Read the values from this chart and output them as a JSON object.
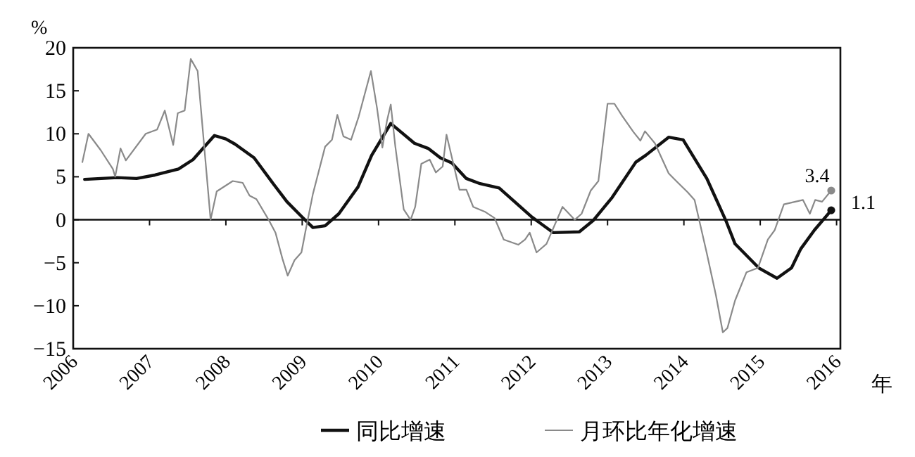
{
  "chart_data": {
    "type": "line",
    "xlabel": "年",
    "ylabel": "%",
    "xlim": [
      2006,
      2016.05
    ],
    "ylim": [
      -15,
      20
    ],
    "xticks": [
      2006,
      2007,
      2008,
      2009,
      2010,
      2011,
      2012,
      2013,
      2014,
      2015,
      2016
    ],
    "yticks": [
      -15,
      -10,
      -5,
      0,
      5,
      10,
      15,
      20
    ],
    "grid": false,
    "legend": "bottom",
    "ref_lines": [
      {
        "axis": "y",
        "value": 0,
        "color": "#111111"
      }
    ],
    "annotations": [
      {
        "text": "3.4",
        "x": 2015.93,
        "y": 3.4
      },
      {
        "text": "1.1",
        "x": 2015.93,
        "y": 1.1
      }
    ],
    "series": [
      {
        "name": "同比增速",
        "color": "#111111",
        "line_style": "solid",
        "x": [
          2006.15,
          2006.58,
          2006.83,
          2007.07,
          2007.38,
          2007.57,
          2007.69,
          2007.85,
          2008.0,
          2008.12,
          2008.37,
          2008.62,
          2008.8,
          2008.99,
          2009.14,
          2009.3,
          2009.48,
          2009.73,
          2009.91,
          2010.16,
          2010.47,
          2010.65,
          2010.81,
          2010.96,
          2011.15,
          2011.33,
          2011.58,
          2012.01,
          2012.29,
          2012.63,
          2012.81,
          2013.06,
          2013.37,
          2013.5,
          2013.8,
          2013.99,
          2014.3,
          2014.55,
          2014.67,
          2014.98,
          2015.22,
          2015.41,
          2015.53,
          2015.71,
          2015.93
        ],
        "values": [
          4.7,
          4.9,
          4.8,
          5.2,
          5.9,
          7.0,
          8.2,
          9.8,
          9.4,
          8.8,
          7.2,
          4.2,
          2.1,
          0.4,
          -0.9,
          -0.7,
          0.7,
          3.8,
          7.5,
          11.2,
          8.9,
          8.3,
          7.2,
          6.6,
          4.8,
          4.2,
          3.7,
          0.3,
          -1.5,
          -1.4,
          -0.1,
          2.6,
          6.7,
          7.5,
          9.6,
          9.3,
          4.8,
          -0.1,
          -2.8,
          -5.6,
          -6.8,
          -5.6,
          -3.4,
          -1.2,
          1.1
        ]
      },
      {
        "name": "月环比年化增速",
        "color": "#8a8a8a",
        "line_style": "solid",
        "x": [
          2006.12,
          2006.2,
          2006.36,
          2006.52,
          2006.55,
          2006.62,
          2006.69,
          2006.95,
          2007.1,
          2007.2,
          2007.31,
          2007.37,
          2007.46,
          2007.54,
          2007.63,
          2007.8,
          2007.88,
          2008.09,
          2008.22,
          2008.31,
          2008.4,
          2008.56,
          2008.65,
          2008.74,
          2008.81,
          2008.9,
          2008.99,
          2009.05,
          2009.14,
          2009.3,
          2009.39,
          2009.46,
          2009.54,
          2009.64,
          2009.74,
          2009.9,
          2009.98,
          2010.05,
          2010.11,
          2010.16,
          2010.22,
          2010.33,
          2010.42,
          2010.48,
          2010.56,
          2010.67,
          2010.75,
          2010.84,
          2010.89,
          2011.06,
          2011.15,
          2011.24,
          2011.4,
          2011.52,
          2011.64,
          2011.83,
          2011.92,
          2011.98,
          2012.07,
          2012.2,
          2012.41,
          2012.57,
          2012.66,
          2012.78,
          2012.88,
          2013.0,
          2013.09,
          2013.19,
          2013.34,
          2013.43,
          2013.49,
          2013.62,
          2013.8,
          2013.9,
          2014.05,
          2014.14,
          2014.3,
          2014.42,
          2014.51,
          2014.57,
          2014.67,
          2014.82,
          2014.97,
          2015.1,
          2015.19,
          2015.31,
          2015.56,
          2015.65,
          2015.72,
          2015.81,
          2015.93
        ],
        "values": [
          6.7,
          10.0,
          8.1,
          5.9,
          5.0,
          8.3,
          6.9,
          10.0,
          10.5,
          12.7,
          8.7,
          12.4,
          12.7,
          18.7,
          17.3,
          0,
          3.3,
          4.5,
          4.3,
          2.8,
          2.4,
          0,
          -1.5,
          -4.5,
          -6.5,
          -4.7,
          -3.8,
          -1.0,
          3.0,
          8.5,
          9.3,
          12.2,
          9.7,
          9.3,
          12.0,
          17.3,
          13.0,
          8.4,
          11.5,
          13.4,
          8.5,
          1.2,
          0,
          1.5,
          6.5,
          7.0,
          5.5,
          6.2,
          9.9,
          3.5,
          3.5,
          1.5,
          0.9,
          0.2,
          -2.3,
          -2.9,
          -2.3,
          -1.5,
          -3.8,
          -2.8,
          1.5,
          0,
          0.7,
          3.4,
          4.5,
          13.5,
          13.5,
          12.1,
          10.2,
          9.2,
          10.3,
          8.9,
          5.4,
          4.5,
          3.2,
          2.3,
          -3.9,
          -8.8,
          -13.1,
          -12.6,
          -9.4,
          -6.1,
          -5.6,
          -2.3,
          -1.2,
          1.8,
          2.3,
          0.7,
          2.3,
          2.1,
          3.4
        ]
      }
    ]
  }
}
